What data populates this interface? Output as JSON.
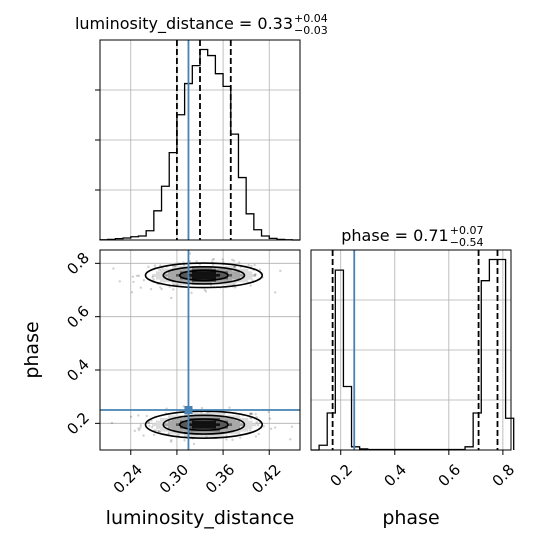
{
  "chart_data": {
    "type": "corner",
    "parameters": [
      "luminosity_distance",
      "phase"
    ],
    "truth": {
      "luminosity_distance": 0.315,
      "phase": 0.25
    },
    "panels": [
      {
        "id": "hist-luminosity_distance",
        "type": "histogram",
        "parameter": "luminosity_distance",
        "title": {
          "prefix": "luminosity_distance = ",
          "value": "0.33",
          "upper": "+0.04",
          "lower": "−0.03"
        },
        "xlim": [
          0.2,
          0.46
        ],
        "quantiles": [
          0.3,
          0.33,
          0.37
        ],
        "truth": 0.315,
        "bins": {
          "edges": [
            0.2,
            0.21,
            0.22,
            0.23,
            0.24,
            0.25,
            0.26,
            0.27,
            0.28,
            0.29,
            0.3,
            0.31,
            0.32,
            0.33,
            0.34,
            0.35,
            0.36,
            0.37,
            0.38,
            0.39,
            0.4,
            0.41,
            0.42,
            0.43,
            0.44,
            0.45,
            0.46
          ],
          "counts": [
            1,
            3,
            7,
            10,
            16,
            20,
            46,
            145,
            267,
            434,
            622,
            777,
            866,
            946,
            916,
            826,
            763,
            526,
            310,
            130,
            51,
            20,
            8,
            3,
            1,
            0
          ]
        }
      },
      {
        "id": "hist-phase",
        "type": "histogram",
        "parameter": "phase",
        "title": {
          "prefix": "phase = ",
          "value": "0.71",
          "upper": "+0.07",
          "lower": "−0.54"
        },
        "xlim": [
          0.09,
          0.83
        ],
        "quantiles": [
          0.17,
          0.71,
          0.78
        ],
        "truth": 0.25,
        "bins": {
          "edges": [
            0.09,
            0.12,
            0.15,
            0.18,
            0.21,
            0.24,
            0.27,
            0.3,
            0.33,
            0.36,
            0.39,
            0.42,
            0.45,
            0.48,
            0.51,
            0.54,
            0.57,
            0.6,
            0.63,
            0.66,
            0.69,
            0.72,
            0.75,
            0.78,
            0.81,
            0.84
          ],
          "counts": [
            0,
            18,
            140,
            680,
            240,
            12,
            4,
            2,
            2,
            2,
            2,
            2,
            2,
            2,
            2,
            2,
            2,
            2,
            2,
            12,
            140,
            640,
            720,
            720,
            120
          ]
        }
      },
      {
        "id": "2d-luminosity_distance-phase",
        "type": "2d-density",
        "x_parameter": "luminosity_distance",
        "y_parameter": "phase",
        "xlim": [
          0.2,
          0.46
        ],
        "ylim": [
          0.1,
          0.85
        ],
        "modes": [
          {
            "x": 0.335,
            "y": 0.195,
            "sx": 0.033,
            "sy": 0.022,
            "weight": 0.5
          },
          {
            "x": 0.335,
            "y": 0.755,
            "sx": 0.033,
            "sy": 0.02,
            "weight": 0.5
          }
        ],
        "truth": {
          "x": 0.315,
          "y": 0.25
        }
      }
    ],
    "axes": {
      "luminosity_distance": {
        "label": "luminosity_distance",
        "ticks": [
          0.24,
          0.3,
          0.36,
          0.42
        ],
        "tick_labels": [
          "0.24",
          "0.30",
          "0.36",
          "0.42"
        ]
      },
      "phase": {
        "label": "phase",
        "ticks": [
          0.2,
          0.4,
          0.6,
          0.8
        ],
        "tick_labels": [
          "0.2",
          "0.4",
          "0.6",
          "0.8"
        ]
      }
    },
    "grid": true,
    "colors": {
      "truth": "#4682b4",
      "hist": "#000000",
      "density": "#000000",
      "grid": "#b0b0b0"
    }
  }
}
